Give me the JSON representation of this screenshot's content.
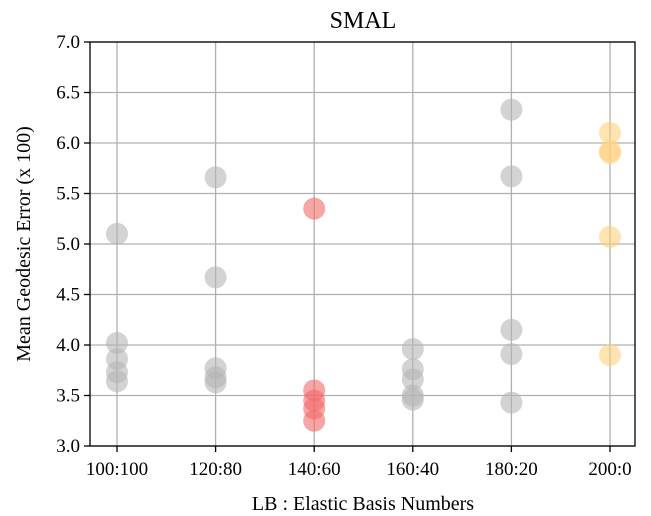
{
  "chart_data": {
    "type": "scatter",
    "title": "SMAL",
    "xlabel": "LB : Elastic Basis Numbers",
    "ylabel": "Mean Geodesic Error (x 100)",
    "categories": [
      "100:100",
      "120:80",
      "140:60",
      "160:40",
      "180:20",
      "200:0"
    ],
    "ylim": [
      3.0,
      7.0
    ],
    "yticks": [
      "3.0",
      "3.5",
      "4.0",
      "4.5",
      "5.0",
      "5.5",
      "6.0",
      "6.5",
      "7.0"
    ],
    "grid": true,
    "colors": {
      "gray": "#b5b5b5",
      "red": "#f26b6b",
      "orange": "#ffd27f"
    },
    "series": [
      {
        "category": "100:100",
        "color": "gray",
        "values": [
          5.1,
          4.02,
          3.86,
          3.73,
          3.64
        ]
      },
      {
        "category": "120:80",
        "color": "gray",
        "values": [
          5.66,
          4.67,
          3.77,
          3.68,
          3.63
        ]
      },
      {
        "category": "140:60",
        "color": "red",
        "values": [
          5.35,
          3.55,
          3.45,
          3.37,
          3.25
        ]
      },
      {
        "category": "160:40",
        "color": "gray",
        "values": [
          3.96,
          3.76,
          3.66,
          3.5,
          3.46
        ]
      },
      {
        "category": "180:20",
        "color": "gray",
        "values": [
          6.33,
          5.67,
          4.15,
          3.91,
          3.43
        ]
      },
      {
        "category": "200:0",
        "color": "orange",
        "values": [
          6.1,
          5.92,
          5.9,
          5.07,
          3.9
        ]
      }
    ]
  }
}
